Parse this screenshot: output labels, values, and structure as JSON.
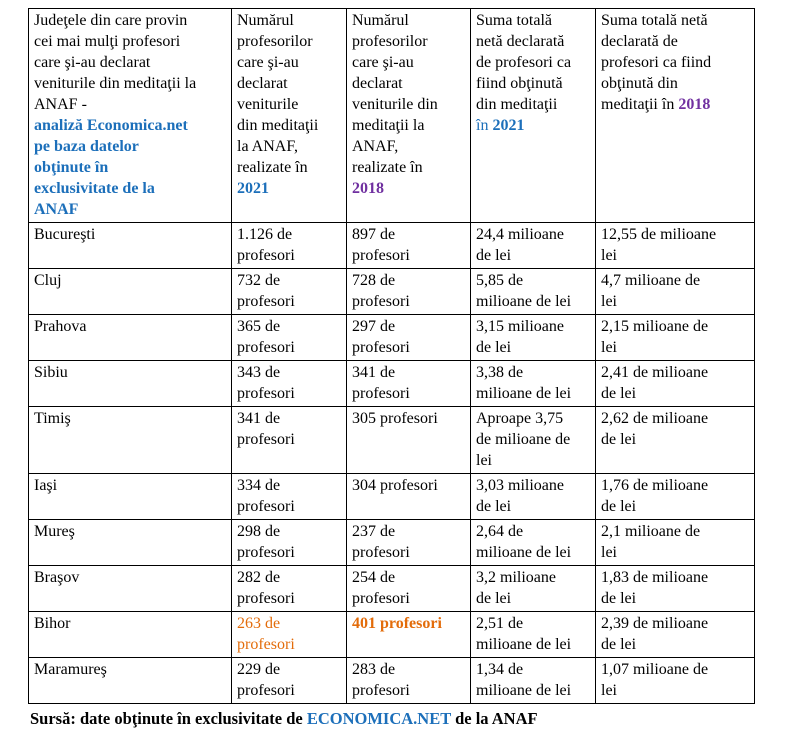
{
  "colors": {
    "blue": "#1C6FBA",
    "purple": "#7030A0",
    "orange": "#E36C0A",
    "text": "#000000",
    "border": "#000000"
  },
  "table": {
    "headers": [
      {
        "id": "county",
        "segments": [
          {
            "text": "Judeţele din care provin\ncei mai mulţi profesori\ncare şi-au declarat\nveniturile din meditaţii la\nANAF -\n",
            "style": "black"
          },
          {
            "text": "analiză Economica.net\npe baza datelor\nobţinute în\nexclusivitate de la\nANAF",
            "style": "blue-bold"
          }
        ]
      },
      {
        "id": "count-2021",
        "segments": [
          {
            "text": "Numărul\nprofesorilor\ncare şi-au\ndeclarat\nveniturile\ndin meditaţii\nla ANAF,\nrealizate în\n",
            "style": "black"
          },
          {
            "text": "2021",
            "style": "blue-bold"
          }
        ]
      },
      {
        "id": "count-2018",
        "segments": [
          {
            "text": "Numărul\nprofesorilor\ncare şi-au\ndeclarat\nveniturile din\nmeditaţii la\nANAF,\nrealizate în\n",
            "style": "black"
          },
          {
            "text": "2018",
            "style": "purple-bold"
          }
        ]
      },
      {
        "id": "sum-2021",
        "segments": [
          {
            "text": "Suma totală\nnetă declarată\nde profesori ca\nfiind obţinută\ndin meditaţii\n",
            "style": "black"
          },
          {
            "text": "în ",
            "style": "blue"
          },
          {
            "text": "2021",
            "style": "blue-bold"
          }
        ]
      },
      {
        "id": "sum-2018",
        "segments": [
          {
            "text": "Suma totală netă\ndeclarată de\nprofesori ca fiind\nobţinută din\nmeditaţii în ",
            "style": "black"
          },
          {
            "text": "2018",
            "style": "purple-bold"
          }
        ]
      }
    ],
    "rows": [
      {
        "county": "Bucureşti",
        "cells": [
          {
            "text": "1.126 de\nprofesori",
            "style": "black"
          },
          {
            "text": "897 de\nprofesori",
            "style": "black"
          },
          {
            "text": "24,4 milioane\nde lei",
            "style": "black"
          },
          {
            "text": "12,55 de milioane\nlei",
            "style": "black"
          }
        ]
      },
      {
        "county": "Cluj",
        "cells": [
          {
            "text": "732 de\nprofesori",
            "style": "black"
          },
          {
            "text": "728 de\nprofesori",
            "style": "black"
          },
          {
            "text": "5,85 de\nmilioane de lei",
            "style": "black"
          },
          {
            "text": "4,7 milioane de\nlei",
            "style": "black"
          }
        ]
      },
      {
        "county": "Prahova",
        "cells": [
          {
            "text": "365 de\nprofesori",
            "style": "black"
          },
          {
            "text": "297 de\nprofesori",
            "style": "black"
          },
          {
            "text": "3,15 milioane\nde lei",
            "style": "black"
          },
          {
            "text": "2,15 milioane de\nlei",
            "style": "black"
          }
        ]
      },
      {
        "county": "Sibiu",
        "cells": [
          {
            "text": "343 de\nprofesori",
            "style": "black"
          },
          {
            "text": "341 de\nprofesori",
            "style": "black"
          },
          {
            "text": "3,38 de\nmilioane de lei",
            "style": "black"
          },
          {
            "text": "2,41 de milioane\nde lei",
            "style": "black"
          }
        ]
      },
      {
        "county": "Timiş",
        "cells": [
          {
            "text": "341 de\nprofesori",
            "style": "black"
          },
          {
            "text": "305 profesori",
            "style": "black"
          },
          {
            "text": "Aproape 3,75\nde milioane de\nlei",
            "style": "black"
          },
          {
            "text": "2,62 de milioane\nde lei",
            "style": "black"
          }
        ]
      },
      {
        "county": "Iaşi",
        "cells": [
          {
            "text": "334 de\nprofesori",
            "style": "black"
          },
          {
            "text": "304 profesori",
            "style": "black"
          },
          {
            "text": "3,03 milioane\nde lei",
            "style": "black"
          },
          {
            "text": "1,76 de milioane\nde lei",
            "style": "black"
          }
        ]
      },
      {
        "county": "Mureş",
        "cells": [
          {
            "text": "298 de\nprofesori",
            "style": "black"
          },
          {
            "text": "237 de\nprofesori",
            "style": "black"
          },
          {
            "text": "2,64 de\nmilioane de lei",
            "style": "black"
          },
          {
            "text": "2,1 milioane de\nlei",
            "style": "black"
          }
        ]
      },
      {
        "county": "Braşov",
        "cells": [
          {
            "text": "282 de\nprofesori",
            "style": "black"
          },
          {
            "text": "254 de\nprofesori",
            "style": "black"
          },
          {
            "text": "3,2 milioane\nde lei",
            "style": "black"
          },
          {
            "text": "1,83 de milioane\nde lei",
            "style": "black"
          }
        ]
      },
      {
        "county": "Bihor",
        "cells": [
          {
            "text": "263 de\nprofesori",
            "style": "orange"
          },
          {
            "text": "401 profesori",
            "style": "orange-bold"
          },
          {
            "text": "2,51 de\nmilioane de lei",
            "style": "black"
          },
          {
            "text": "2,39 de milioane\nde lei",
            "style": "black"
          }
        ]
      },
      {
        "county": "Maramureş",
        "cells": [
          {
            "text": "229 de\nprofesori",
            "style": "black"
          },
          {
            "text": "283 de\nprofesori",
            "style": "black"
          },
          {
            "text": "1,34 de\nmilioane de lei",
            "style": "black"
          },
          {
            "text": "1,07 milioane de\nlei",
            "style": "black"
          }
        ]
      }
    ]
  },
  "footer": {
    "segments": [
      {
        "text": "Sursă: date obţinute în exclusivitate de ",
        "style": "black-bold"
      },
      {
        "text": "ECONOMICA.NET",
        "style": "blue-bold",
        "link": true
      },
      {
        "text": " de la ANAF",
        "style": "black-bold"
      }
    ]
  }
}
